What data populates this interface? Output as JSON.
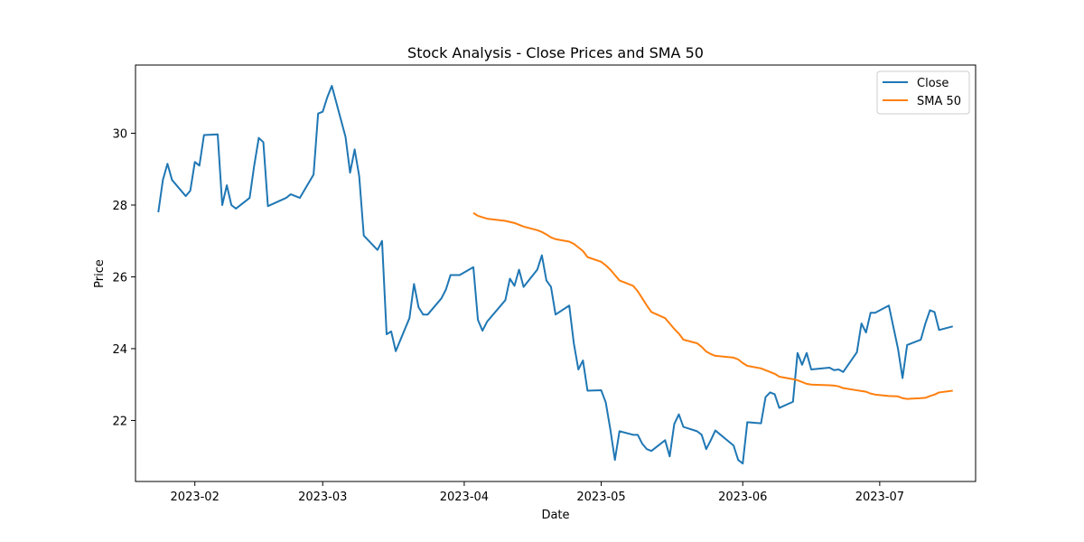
{
  "chart_data": {
    "type": "line",
    "title": "Stock Analysis - Close Prices and SMA 50",
    "xlabel": "Date",
    "ylabel": "Price",
    "x_axis": "date",
    "xlim": [
      "2023-01-19",
      "2023-07-22"
    ],
    "ylim": [
      20.3,
      31.9
    ],
    "grid": false,
    "legend_position": "top-right",
    "x_ticks": [
      "2023-02-01",
      "2023-03-01",
      "2023-04-01",
      "2023-05-01",
      "2023-06-01",
      "2023-07-01"
    ],
    "x_tick_labels": [
      "2023-02",
      "2023-03",
      "2023-04",
      "2023-05",
      "2023-06",
      "2023-07"
    ],
    "y_ticks": [
      22,
      24,
      26,
      28,
      30
    ],
    "y_tick_labels": [
      "22",
      "24",
      "26",
      "28",
      "30"
    ],
    "series": [
      {
        "name": "Close",
        "color": "#1f77b4",
        "points": [
          [
            "2023-01-24",
            27.8
          ],
          [
            "2023-01-25",
            28.7
          ],
          [
            "2023-01-26",
            29.15
          ],
          [
            "2023-01-27",
            28.7
          ],
          [
            "2023-01-30",
            28.25
          ],
          [
            "2023-01-31",
            28.4
          ],
          [
            "2023-02-01",
            29.2
          ],
          [
            "2023-02-02",
            29.1
          ],
          [
            "2023-02-03",
            29.95
          ],
          [
            "2023-02-06",
            29.97
          ],
          [
            "2023-02-07",
            28.0
          ],
          [
            "2023-02-08",
            28.55
          ],
          [
            "2023-02-09",
            28.0
          ],
          [
            "2023-02-10",
            27.9
          ],
          [
            "2023-02-13",
            28.2
          ],
          [
            "2023-02-14",
            29.1
          ],
          [
            "2023-02-15",
            29.87
          ],
          [
            "2023-02-16",
            29.75
          ],
          [
            "2023-02-17",
            27.97
          ],
          [
            "2023-02-21",
            28.2
          ],
          [
            "2023-02-22",
            28.3
          ],
          [
            "2023-02-23",
            28.25
          ],
          [
            "2023-02-24",
            28.2
          ],
          [
            "2023-02-27",
            28.85
          ],
          [
            "2023-02-28",
            30.55
          ],
          [
            "2023-03-01",
            30.6
          ],
          [
            "2023-03-02",
            31.0
          ],
          [
            "2023-03-03",
            31.32
          ],
          [
            "2023-03-06",
            29.9
          ],
          [
            "2023-03-07",
            28.9
          ],
          [
            "2023-03-08",
            29.55
          ],
          [
            "2023-03-09",
            28.8
          ],
          [
            "2023-03-10",
            27.15
          ],
          [
            "2023-03-13",
            26.75
          ],
          [
            "2023-03-14",
            27.0
          ],
          [
            "2023-03-15",
            24.4
          ],
          [
            "2023-03-16",
            24.48
          ],
          [
            "2023-03-17",
            23.93
          ],
          [
            "2023-03-20",
            24.85
          ],
          [
            "2023-03-21",
            25.8
          ],
          [
            "2023-03-22",
            25.15
          ],
          [
            "2023-03-23",
            24.95
          ],
          [
            "2023-03-24",
            24.95
          ],
          [
            "2023-03-27",
            25.4
          ],
          [
            "2023-03-28",
            25.65
          ],
          [
            "2023-03-29",
            26.05
          ],
          [
            "2023-03-30",
            26.05
          ],
          [
            "2023-03-31",
            26.05
          ],
          [
            "2023-04-03",
            26.27
          ],
          [
            "2023-04-04",
            24.8
          ],
          [
            "2023-04-05",
            24.5
          ],
          [
            "2023-04-06",
            24.75
          ],
          [
            "2023-04-10",
            25.35
          ],
          [
            "2023-04-11",
            25.95
          ],
          [
            "2023-04-12",
            25.75
          ],
          [
            "2023-04-13",
            26.2
          ],
          [
            "2023-04-14",
            25.72
          ],
          [
            "2023-04-17",
            26.2
          ],
          [
            "2023-04-18",
            26.6
          ],
          [
            "2023-04-19",
            25.9
          ],
          [
            "2023-04-20",
            25.72
          ],
          [
            "2023-04-21",
            24.95
          ],
          [
            "2023-04-24",
            25.2
          ],
          [
            "2023-04-25",
            24.15
          ],
          [
            "2023-04-26",
            23.42
          ],
          [
            "2023-04-27",
            23.67
          ],
          [
            "2023-04-28",
            22.83
          ],
          [
            "2023-05-01",
            22.84
          ],
          [
            "2023-05-02",
            22.5
          ],
          [
            "2023-05-03",
            21.75
          ],
          [
            "2023-05-04",
            20.9
          ],
          [
            "2023-05-05",
            21.7
          ],
          [
            "2023-05-08",
            21.6
          ],
          [
            "2023-05-09",
            21.6
          ],
          [
            "2023-05-10",
            21.35
          ],
          [
            "2023-05-11",
            21.2
          ],
          [
            "2023-05-12",
            21.15
          ],
          [
            "2023-05-15",
            21.45
          ],
          [
            "2023-05-16",
            21.0
          ],
          [
            "2023-05-17",
            21.9
          ],
          [
            "2023-05-18",
            22.17
          ],
          [
            "2023-05-19",
            21.82
          ],
          [
            "2023-05-22",
            21.7
          ],
          [
            "2023-05-23",
            21.6
          ],
          [
            "2023-05-24",
            21.2
          ],
          [
            "2023-05-25",
            21.45
          ],
          [
            "2023-05-26",
            21.72
          ],
          [
            "2023-05-30",
            21.3
          ],
          [
            "2023-05-31",
            20.9
          ],
          [
            "2023-06-01",
            20.8
          ],
          [
            "2023-06-02",
            21.95
          ],
          [
            "2023-06-05",
            21.92
          ],
          [
            "2023-06-06",
            22.65
          ],
          [
            "2023-06-07",
            22.78
          ],
          [
            "2023-06-08",
            22.73
          ],
          [
            "2023-06-09",
            22.35
          ],
          [
            "2023-06-12",
            22.52
          ],
          [
            "2023-06-13",
            23.88
          ],
          [
            "2023-06-14",
            23.55
          ],
          [
            "2023-06-15",
            23.88
          ],
          [
            "2023-06-16",
            23.42
          ],
          [
            "2023-06-20",
            23.47
          ],
          [
            "2023-06-21",
            23.4
          ],
          [
            "2023-06-22",
            23.42
          ],
          [
            "2023-06-23",
            23.35
          ],
          [
            "2023-06-26",
            23.9
          ],
          [
            "2023-06-27",
            24.7
          ],
          [
            "2023-06-28",
            24.45
          ],
          [
            "2023-06-29",
            25.0
          ],
          [
            "2023-06-30",
            25.0
          ],
          [
            "2023-07-03",
            25.2
          ],
          [
            "2023-07-05",
            24.0
          ],
          [
            "2023-07-06",
            23.18
          ],
          [
            "2023-07-07",
            24.1
          ],
          [
            "2023-07-10",
            24.25
          ],
          [
            "2023-07-11",
            24.7
          ],
          [
            "2023-07-12",
            25.07
          ],
          [
            "2023-07-13",
            25.02
          ],
          [
            "2023-07-14",
            24.52
          ],
          [
            "2023-07-17",
            24.62
          ]
        ]
      },
      {
        "name": "SMA 50",
        "color": "#ff7f0e",
        "points": [
          [
            "2023-04-03",
            27.78
          ],
          [
            "2023-04-04",
            27.7
          ],
          [
            "2023-04-06",
            27.62
          ],
          [
            "2023-04-10",
            27.56
          ],
          [
            "2023-04-12",
            27.5
          ],
          [
            "2023-04-13",
            27.45
          ],
          [
            "2023-04-14",
            27.4
          ],
          [
            "2023-04-17",
            27.3
          ],
          [
            "2023-04-18",
            27.25
          ],
          [
            "2023-04-19",
            27.18
          ],
          [
            "2023-04-20",
            27.1
          ],
          [
            "2023-04-21",
            27.05
          ],
          [
            "2023-04-24",
            26.98
          ],
          [
            "2023-04-25",
            26.92
          ],
          [
            "2023-04-26",
            26.82
          ],
          [
            "2023-04-27",
            26.72
          ],
          [
            "2023-04-28",
            26.55
          ],
          [
            "2023-05-01",
            26.42
          ],
          [
            "2023-05-02",
            26.32
          ],
          [
            "2023-05-03",
            26.2
          ],
          [
            "2023-05-04",
            26.05
          ],
          [
            "2023-05-05",
            25.9
          ],
          [
            "2023-05-08",
            25.75
          ],
          [
            "2023-05-09",
            25.6
          ],
          [
            "2023-05-10",
            25.4
          ],
          [
            "2023-05-11",
            25.2
          ],
          [
            "2023-05-12",
            25.02
          ],
          [
            "2023-05-15",
            24.85
          ],
          [
            "2023-05-16",
            24.7
          ],
          [
            "2023-05-17",
            24.55
          ],
          [
            "2023-05-18",
            24.42
          ],
          [
            "2023-05-19",
            24.25
          ],
          [
            "2023-05-22",
            24.15
          ],
          [
            "2023-05-23",
            24.05
          ],
          [
            "2023-05-24",
            23.92
          ],
          [
            "2023-05-25",
            23.85
          ],
          [
            "2023-05-26",
            23.8
          ],
          [
            "2023-05-30",
            23.75
          ],
          [
            "2023-05-31",
            23.7
          ],
          [
            "2023-06-01",
            23.6
          ],
          [
            "2023-06-02",
            23.52
          ],
          [
            "2023-06-05",
            23.45
          ],
          [
            "2023-06-06",
            23.4
          ],
          [
            "2023-06-07",
            23.35
          ],
          [
            "2023-06-08",
            23.3
          ],
          [
            "2023-06-09",
            23.22
          ],
          [
            "2023-06-12",
            23.15
          ],
          [
            "2023-06-13",
            23.12
          ],
          [
            "2023-06-14",
            23.07
          ],
          [
            "2023-06-15",
            23.02
          ],
          [
            "2023-06-16",
            23.0
          ],
          [
            "2023-06-20",
            22.98
          ],
          [
            "2023-06-21",
            22.97
          ],
          [
            "2023-06-22",
            22.95
          ],
          [
            "2023-06-23",
            22.9
          ],
          [
            "2023-06-26",
            22.84
          ],
          [
            "2023-06-27",
            22.82
          ],
          [
            "2023-06-28",
            22.8
          ],
          [
            "2023-06-29",
            22.75
          ],
          [
            "2023-06-30",
            22.72
          ],
          [
            "2023-07-03",
            22.68
          ],
          [
            "2023-07-05",
            22.67
          ],
          [
            "2023-07-06",
            22.62
          ],
          [
            "2023-07-07",
            22.6
          ],
          [
            "2023-07-10",
            22.62
          ],
          [
            "2023-07-11",
            22.63
          ],
          [
            "2023-07-12",
            22.68
          ],
          [
            "2023-07-13",
            22.72
          ],
          [
            "2023-07-14",
            22.78
          ],
          [
            "2023-07-17",
            22.83
          ]
        ]
      }
    ]
  }
}
